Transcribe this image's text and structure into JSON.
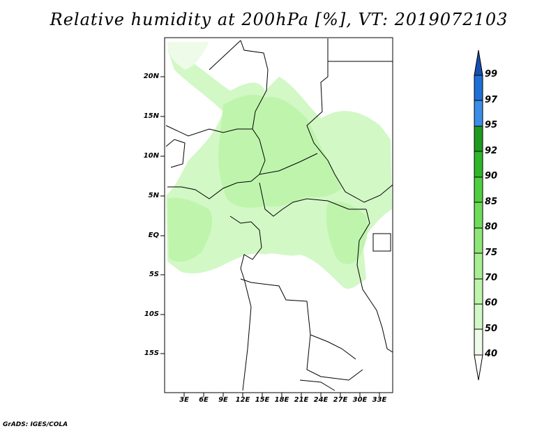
{
  "title": "Relative humidity at 200hPa [%], VT: 2019072103",
  "credit": "GrADS: IGES/COLA",
  "map": {
    "lat_labels": [
      "20N",
      "15N",
      "10N",
      "5N",
      "EQ",
      "5S",
      "10S",
      "15S"
    ],
    "lon_labels": [
      "3E",
      "6E",
      "9E",
      "12E",
      "15E",
      "18E",
      "21E",
      "24E",
      "27E",
      "30E",
      "33E"
    ]
  },
  "colorbar": {
    "levels": [
      "40",
      "50",
      "60",
      "70",
      "75",
      "80",
      "85",
      "90",
      "92",
      "95",
      "97",
      "99"
    ],
    "colors": [
      "#eefbe8",
      "#d2f8c5",
      "#bff4ad",
      "#a8ee92",
      "#8ee678",
      "#6fdc5a",
      "#4fcf3f",
      "#2fb62a",
      "#1f9a1f",
      "#3a8ee8",
      "#1f6fd6",
      "#1450b0"
    ]
  }
}
